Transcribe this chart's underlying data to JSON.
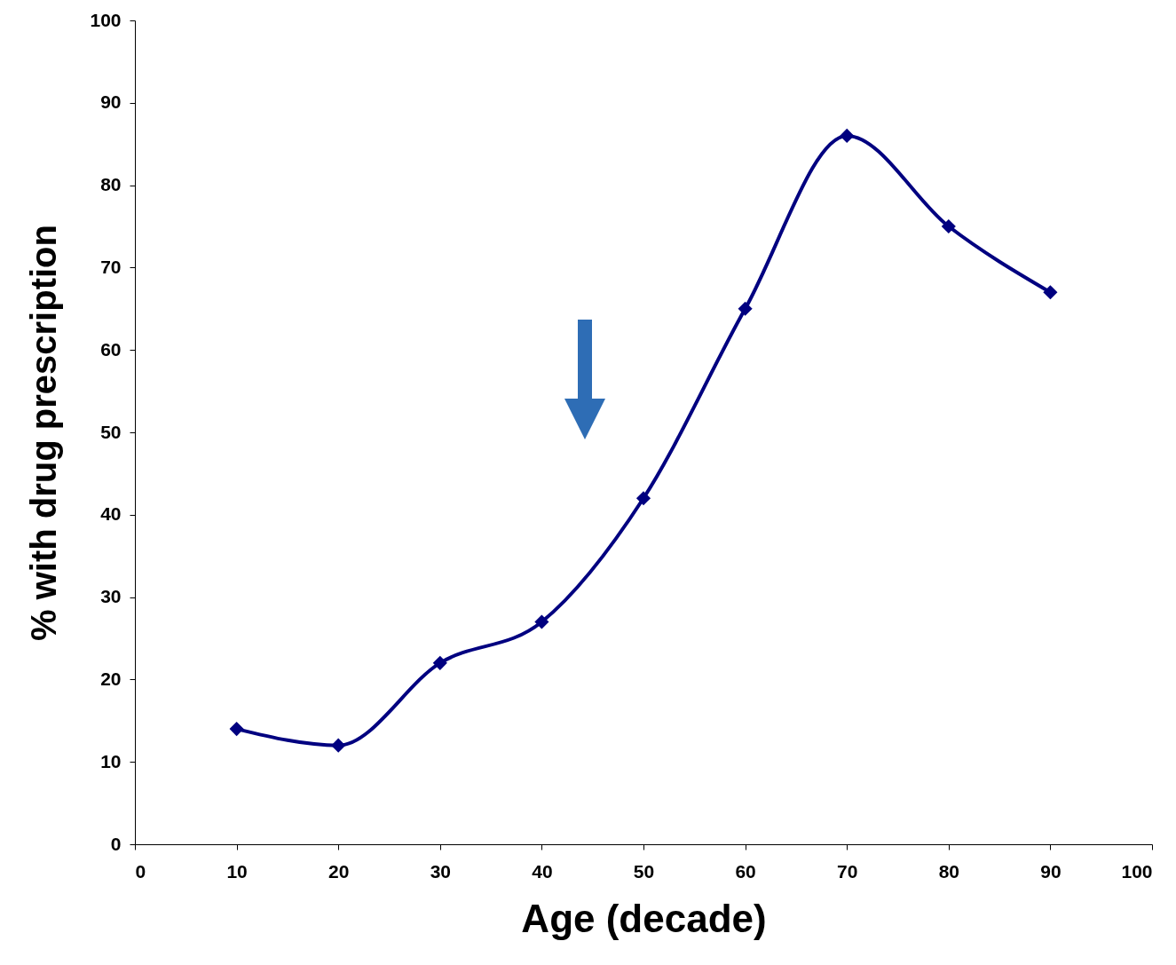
{
  "chart_data": {
    "type": "line",
    "xlabel": "Age (decade)",
    "ylabel": "% with drug prescription",
    "x": [
      10,
      20,
      30,
      40,
      50,
      60,
      70,
      80,
      90
    ],
    "series": [
      {
        "color": "#000080",
        "values": [
          14,
          12,
          22,
          27,
          42,
          65,
          86,
          75,
          67
        ]
      }
    ],
    "xlim": [
      0,
      100
    ],
    "xticks": [
      0,
      10,
      20,
      30,
      40,
      50,
      60,
      70,
      80,
      90,
      100
    ],
    "ylim": [
      0,
      100
    ],
    "yticks": [
      0,
      10,
      20,
      30,
      40,
      50,
      60,
      70,
      80,
      90,
      100
    ],
    "grid": false,
    "legend": false,
    "marker": "diamond",
    "line_style": "solid"
  }
}
